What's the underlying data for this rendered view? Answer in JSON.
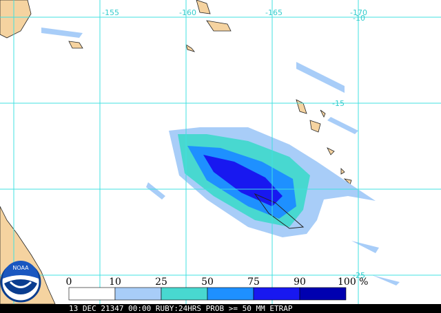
{
  "map": {
    "lon_labels": [
      "-155",
      "-160",
      "-165",
      "-170"
    ],
    "lat_labels": [
      "-10",
      "-15",
      "-25"
    ],
    "logo": "NOAA",
    "legend": {
      "labels": [
        "0",
        "10",
        "25",
        "50",
        "75",
        "90",
        "100 %"
      ],
      "colors": [
        "#ffffff",
        "#a8cdf8",
        "#48d8d0",
        "#1e90ff",
        "#1818f0",
        "#0000b0"
      ]
    },
    "footer": "13 DEC 21347 00:00 RUBY:24HRS PROB >= 50 MM ETRAP"
  }
}
